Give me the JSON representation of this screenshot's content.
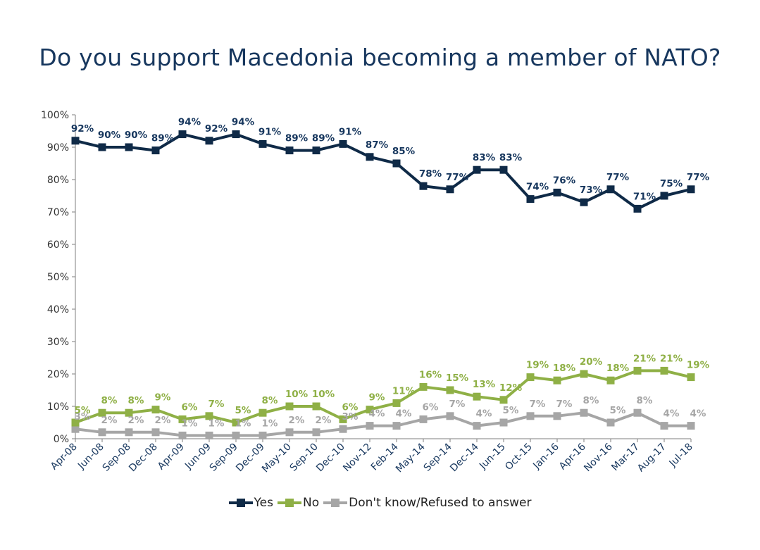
{
  "chart_data": {
    "type": "line",
    "title": "Do you support Macedonia becoming a member of NATO?",
    "x": [
      "Apr-08",
      "Jun-08",
      "Sep-08",
      "Dec-08",
      "Apr-09",
      "Jun-09",
      "Sep-09",
      "Dec-09",
      "May-10",
      "Sep-10",
      "Dec-10",
      "Nov-12",
      "Feb-14",
      "May-14",
      "Sep-14",
      "Dec-14",
      "Jun-15",
      "Oct-15",
      "Jan-16",
      "Apr-16",
      "Nov-16",
      "Mar-17",
      "Aug-17",
      "Jul-18"
    ],
    "yticks": [
      "0%",
      "10%",
      "20%",
      "30%",
      "40%",
      "50%",
      "60%",
      "70%",
      "80%",
      "90%",
      "100%"
    ],
    "ylim": [
      0,
      100
    ],
    "legend_position": "bottom",
    "series": [
      {
        "name": "Yes",
        "color": "#0f2a47",
        "values": [
          92,
          90,
          90,
          89,
          94,
          92,
          94,
          91,
          89,
          89,
          91,
          87,
          85,
          78,
          77,
          83,
          83,
          74,
          76,
          73,
          77,
          71,
          75,
          77
        ],
        "labels": [
          "92%",
          "90%",
          "90%",
          "89%",
          "94%",
          "92%",
          "94%",
          "91%",
          "89%",
          "89%",
          "91%",
          "87%",
          "85%",
          "78%",
          "77%",
          "83%",
          "83%",
          "74%",
          "76%",
          "73%",
          "77%",
          "71%",
          "75%",
          "77%"
        ]
      },
      {
        "name": "No",
        "color": "#8fb046",
        "values": [
          5,
          8,
          8,
          9,
          6,
          7,
          5,
          8,
          10,
          10,
          6,
          9,
          11,
          16,
          15,
          13,
          12,
          19,
          18,
          20,
          18,
          21,
          21,
          19
        ],
        "labels": [
          "5%",
          "8%",
          "8%",
          "9%",
          "6%",
          "7%",
          "5%",
          "8%",
          "10%",
          "10%",
          "6%",
          "9%",
          "11%",
          "16%",
          "15%",
          "13%",
          "12%",
          "19%",
          "18%",
          "20%",
          "18%",
          "21%",
          "21%",
          "19%"
        ]
      },
      {
        "name": "Don't know/Refused to answer",
        "color": "#a6a6a6",
        "values": [
          3,
          2,
          2,
          2,
          1,
          1,
          1,
          1,
          2,
          2,
          3,
          4,
          4,
          6,
          7,
          4,
          5,
          7,
          7,
          8,
          5,
          8,
          4,
          4
        ],
        "labels": [
          "3%",
          "2%",
          "2%",
          "2%",
          "1%",
          "1%",
          "1%",
          "1%",
          "2%",
          "2%",
          "3%",
          "4%",
          "4%",
          "6%",
          "7%",
          "4%",
          "5%",
          "7%",
          "7%",
          "8%",
          "5%",
          "8%",
          "4%",
          "4%"
        ]
      }
    ]
  }
}
